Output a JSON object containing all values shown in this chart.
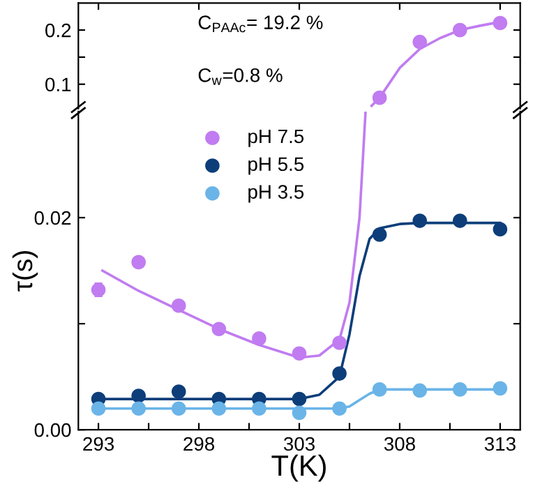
{
  "chart_data": [
    {
      "type": "scatter",
      "xlim": [
        292,
        314
      ],
      "ylim": [
        0.055,
        0.25
      ],
      "yticks": [
        {
          "value": 0.1,
          "label": "0.1"
        },
        {
          "value": 0.15,
          "label": null
        },
        {
          "value": 0.2,
          "label": "0.2"
        }
      ],
      "xticks": [
        {
          "value": 293,
          "label": null
        },
        {
          "value": 298,
          "label": null
        },
        {
          "value": 303,
          "label": null
        },
        {
          "value": 308,
          "label": null
        },
        {
          "value": 313,
          "label": null
        }
      ],
      "tick_labels": "y",
      "grid": false,
      "annotations": [
        "C$_{PAAc}$= 19.2 %",
        "C$_{w}$=0.8 %"
      ],
      "series": [
        {
          "marker": "circle",
          "color": "#c07cf0",
          "x": [
            307,
            309,
            311,
            313
          ],
          "values": [
            0.075,
            0.178,
            0.2,
            0.213
          ]
        },
        {
          "type": "line",
          "color": "#c07cf0",
          "x": [
            306.6,
            307,
            308,
            309,
            310,
            311,
            312,
            313
          ],
          "values": [
            0.06,
            0.075,
            0.13,
            0.165,
            0.185,
            0.2,
            0.208,
            0.215
          ]
        }
      ]
    },
    {
      "type": "scatter",
      "xlabel": "T(K)",
      "ylabel": "τ(s)",
      "xlim": [
        292,
        314
      ],
      "ylim": [
        0,
        0.03
      ],
      "yticks": [
        {
          "value": 0,
          "label": "0.00"
        },
        {
          "value": 0.01,
          "label": null
        },
        {
          "value": 0.02,
          "label": "0.02"
        }
      ],
      "xticks": [
        293,
        {
          "value": 295.5,
          "label": null
        },
        298,
        {
          "value": 300.5,
          "label": null
        },
        303,
        {
          "value": 305.5,
          "label": null
        },
        308,
        {
          "value": 310.5,
          "label": null
        },
        313
      ],
      "grid": false,
      "legend": "top left",
      "series": [
        {
          "marker": "circle",
          "name": "pH 7.5",
          "color": "#c07cf0",
          "x": [
            293,
            295,
            297,
            299,
            301,
            303,
            305
          ],
          "values": [
            0.0132,
            0.0158,
            0.0117,
            0.0095,
            0.0086,
            0.0072,
            0.0082
          ],
          "errors": [
            0.0006,
            0.0003,
            null,
            null,
            null,
            null,
            null
          ]
        },
        {
          "marker": "circle",
          "name": "pH 5.5",
          "color": "#0d3e7a",
          "x": [
            293,
            295,
            297,
            299,
            301,
            303,
            305,
            307,
            309,
            311,
            313
          ],
          "values": [
            0.0029,
            0.0032,
            0.0036,
            0.0029,
            0.0029,
            0.0029,
            0.0053,
            0.0184,
            0.0197,
            0.0197,
            0.0189
          ]
        },
        {
          "marker": "circle",
          "name": "pH 3.5",
          "color": "#6ab4e8",
          "x": [
            293,
            295,
            297,
            299,
            301,
            303,
            305,
            307,
            309,
            311,
            313
          ],
          "values": [
            0.002,
            0.002,
            0.002,
            0.002,
            0.002,
            0.0016,
            0.002,
            0.0038,
            0.0037,
            0.0038,
            0.0039
          ]
        },
        {
          "type": "line",
          "color": "#c07cf0",
          "x": [
            293.2,
            295,
            297,
            299,
            301,
            303,
            304,
            305,
            305.5,
            306,
            306.3
          ],
          "values": [
            0.015,
            0.0131,
            0.0113,
            0.0095,
            0.008,
            0.0068,
            0.007,
            0.0085,
            0.012,
            0.02,
            0.03
          ]
        },
        {
          "type": "line",
          "color": "#0d3e7a",
          "x": [
            293,
            303,
            304,
            305,
            305.5,
            306,
            306.5,
            307,
            308,
            309,
            313
          ],
          "values": [
            0.0029,
            0.0029,
            0.0033,
            0.005,
            0.009,
            0.0145,
            0.018,
            0.019,
            0.0194,
            0.0195,
            0.0195
          ]
        },
        {
          "type": "line",
          "color": "#6ab4e8",
          "x": [
            293,
            305,
            305.5,
            306,
            306.5,
            307,
            313
          ],
          "values": [
            0.002,
            0.002,
            0.0022,
            0.0028,
            0.0034,
            0.0038,
            0.0038
          ]
        }
      ]
    }
  ]
}
